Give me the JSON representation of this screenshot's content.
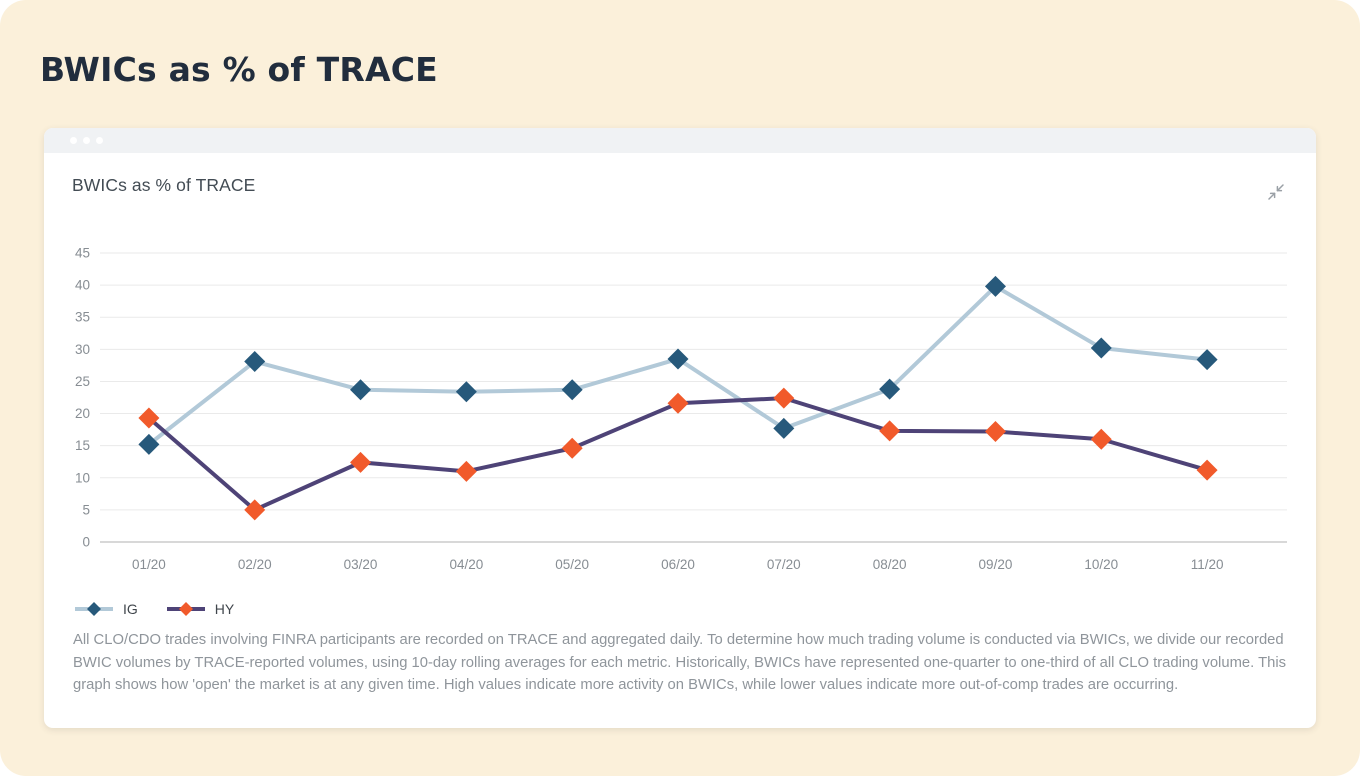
{
  "page": {
    "title": "BWICs as % of TRACE",
    "background_color": "#fbf0da"
  },
  "card": {
    "title": "BWICs as % of TRACE",
    "window_dots": 3,
    "action_icon": "collapse-diagonal-arrows",
    "description": "All CLO/CDO trades involving FINRA participants are recorded on TRACE and aggregated daily. To determine how much trading volume is conducted via BWICs, we divide our recorded BWIC volumes by TRACE-reported volumes, using 10-day rolling averages for each metric. Historically, BWICs have represented one-quarter to one-third of all CLO trading volume. This graph shows how 'open' the market is at any given time. High values indicate more activity on BWICs, while lower values indicate more out-of-comp trades are occurring."
  },
  "chart_data": {
    "type": "line",
    "title": "BWICs as % of TRACE",
    "categories": [
      "01/20",
      "02/20",
      "03/20",
      "04/20",
      "05/20",
      "06/20",
      "07/20",
      "08/20",
      "09/20",
      "10/20",
      "11/20"
    ],
    "series": [
      {
        "name": "IG",
        "values": [
          15.2,
          28.1,
          23.7,
          23.4,
          23.7,
          28.5,
          17.7,
          23.8,
          39.8,
          30.2,
          28.4
        ],
        "line_color": "#b2c9d8",
        "marker_color": "#27597b"
      },
      {
        "name": "HY",
        "values": [
          19.3,
          5.0,
          12.4,
          11.0,
          14.6,
          21.6,
          22.4,
          17.3,
          17.2,
          16.0,
          11.2
        ],
        "line_color": "#4e4377",
        "marker_color": "#f15a2b"
      }
    ],
    "marker": "diamond",
    "xlabel": "",
    "ylabel": "",
    "ylim": [
      0,
      45
    ],
    "ytick_step": 5,
    "grid": true,
    "legend_position": "bottom-left",
    "colors": {
      "grid_line": "#eaeaea",
      "axis_line": "#d8d8d8",
      "tick_label": "#878d93"
    }
  }
}
